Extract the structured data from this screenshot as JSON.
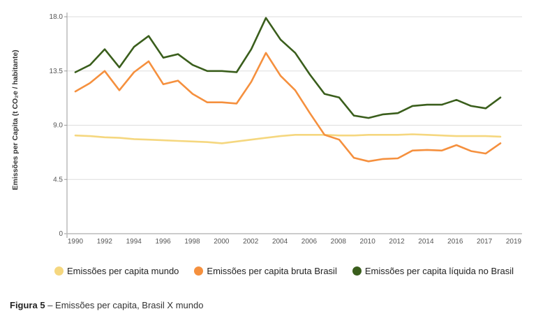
{
  "chart_data": {
    "type": "line",
    "title": "",
    "xlabel": "",
    "ylabel": "Emissões per Capita (t CO₂e / habitante)",
    "ylim": [
      0,
      18
    ],
    "yticks": [
      "0",
      "4.5",
      "9.0",
      "13.5",
      "18.0"
    ],
    "ytick_values": [
      0,
      4.5,
      9,
      13.5,
      18
    ],
    "xticks": [
      "1990",
      "1992",
      "1994",
      "1996",
      "1998",
      "2000",
      "2002",
      "2004",
      "2006",
      "2008",
      "2010",
      "2012",
      "2014",
      "2016",
      "2017",
      "2019"
    ],
    "x": [
      1990,
      1991,
      1992,
      1993,
      1994,
      1995,
      1996,
      1997,
      1998,
      1999,
      2000,
      2001,
      2002,
      2003,
      2004,
      2005,
      2006,
      2007,
      2008,
      2009,
      2010,
      2011,
      2012,
      2013,
      2014,
      2015,
      2016,
      2017,
      2018,
      2019
    ],
    "grid": true,
    "legend_position": "bottom",
    "series": [
      {
        "name": "Emissões per capita mundo",
        "color": "#f5d77f",
        "values": [
          8.15,
          8.1,
          8.0,
          7.95,
          7.85,
          7.8,
          7.75,
          7.7,
          7.65,
          7.6,
          7.5,
          7.65,
          7.8,
          7.95,
          8.1,
          8.2,
          8.2,
          8.2,
          8.15,
          8.15,
          8.2,
          8.2,
          8.2,
          8.25,
          8.2,
          8.15,
          8.1,
          8.1,
          8.1,
          8.05
        ]
      },
      {
        "name": "Emissões per capita bruta Brasil",
        "color": "#f5903e",
        "values": [
          11.8,
          12.5,
          13.5,
          11.9,
          13.4,
          14.3,
          12.4,
          12.7,
          11.6,
          10.9,
          10.9,
          10.8,
          12.6,
          15.0,
          13.1,
          11.9,
          10.0,
          8.2,
          7.8,
          6.3,
          6.0,
          6.2,
          6.25,
          6.9,
          6.95,
          6.9,
          7.35,
          6.85,
          6.65,
          7.5
        ]
      },
      {
        "name": "Emissões per capita líquida no Brasil",
        "color": "#3a5e1c",
        "values": [
          13.4,
          14.0,
          15.3,
          13.8,
          15.5,
          16.4,
          14.6,
          14.9,
          14.0,
          13.5,
          13.5,
          13.4,
          15.3,
          17.9,
          16.1,
          15.0,
          13.2,
          11.6,
          11.3,
          9.8,
          9.6,
          9.9,
          10.0,
          10.6,
          10.7,
          10.7,
          11.1,
          10.6,
          10.4,
          11.3
        ]
      }
    ]
  },
  "caption": {
    "label": "Figura 5",
    "text": " – Emissões per capita, Brasil X mundo"
  }
}
